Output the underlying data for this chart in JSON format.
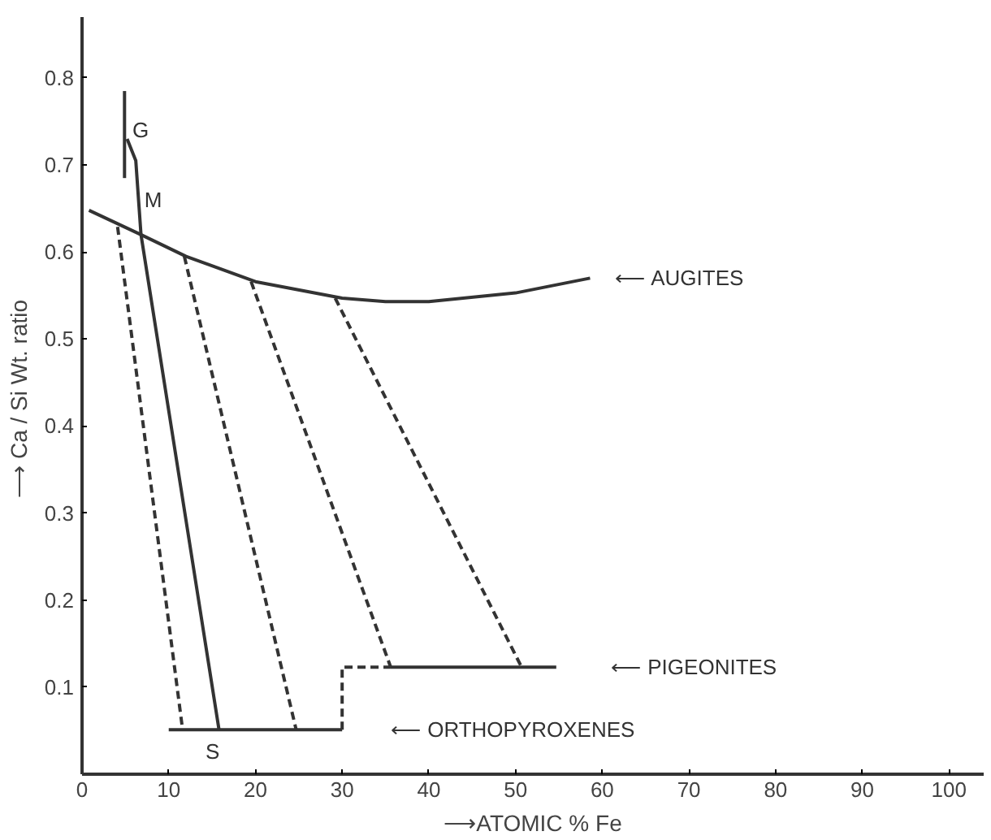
{
  "chart_data": {
    "type": "line",
    "xlabel": "⟶ATOMIC % Fe",
    "ylabel": "⟶ Ca / Si  Wt. ratio",
    "xlim": [
      0,
      104
    ],
    "ylim": [
      0,
      0.87
    ],
    "xticks": [
      0,
      10,
      20,
      30,
      40,
      50,
      60,
      70,
      80,
      90,
      100
    ],
    "yticks": [
      0.1,
      0.2,
      0.3,
      0.4,
      0.5,
      0.6,
      0.7,
      0.8
    ],
    "grid": false,
    "marker": "none",
    "series": [
      {
        "color": "#333333",
        "line_style": "solid",
        "x": [
          0.8,
          6.8,
          12,
          20,
          30,
          35,
          40,
          50,
          58.6
        ],
        "values": [
          0.648,
          0.62,
          0.595,
          0.566,
          0.547,
          0.543,
          0.543,
          0.553,
          0.57
        ]
      },
      {
        "color": "#333333",
        "line_style": "dashed",
        "x": [
          4.1,
          11.6
        ],
        "values": [
          0.629,
          0.051
        ]
      },
      {
        "color": "#333333",
        "line_style": "dashed",
        "x": [
          11.8,
          24.7
        ],
        "values": [
          0.595,
          0.051
        ]
      },
      {
        "color": "#333333",
        "line_style": "dashed",
        "x": [
          19.5,
          35.6
        ],
        "values": [
          0.566,
          0.123
        ]
      },
      {
        "color": "#333333",
        "line_style": "dashed",
        "x": [
          29.2,
          50.7
        ],
        "values": [
          0.547,
          0.123
        ]
      },
      {
        "color": "#333333",
        "line_style": "solid",
        "x": [
          10,
          30
        ],
        "values": [
          0.051,
          0.051
        ]
      },
      {
        "color": "#333333",
        "line_style": "dashed",
        "x": [
          30,
          30,
          35.6
        ],
        "values": [
          0.051,
          0.123,
          0.123
        ]
      },
      {
        "color": "#333333",
        "line_style": "solid",
        "x": [
          35.6,
          54.7
        ],
        "values": [
          0.123,
          0.123
        ]
      },
      {
        "color": "#333333",
        "line_style": "solid",
        "x": [
          4.9,
          4.9
        ],
        "values": [
          0.685,
          0.785
        ]
      },
      {
        "color": "#333333",
        "line_style": "solid",
        "x": [
          5.2,
          6.2,
          6.8,
          15.8
        ],
        "values": [
          0.73,
          0.705,
          0.62,
          0.051
        ]
      }
    ],
    "annotations": [
      {
        "text": "G",
        "x": 5.8,
        "y": 0.74
      },
      {
        "text": "M",
        "x": 7.2,
        "y": 0.66
      },
      {
        "text": "S",
        "x": 15.8,
        "y": 0.051
      },
      "⟵  AUGITES",
      "⟵  PIGEONITES",
      "⟵  ORTHOPYROXENES"
    ]
  }
}
